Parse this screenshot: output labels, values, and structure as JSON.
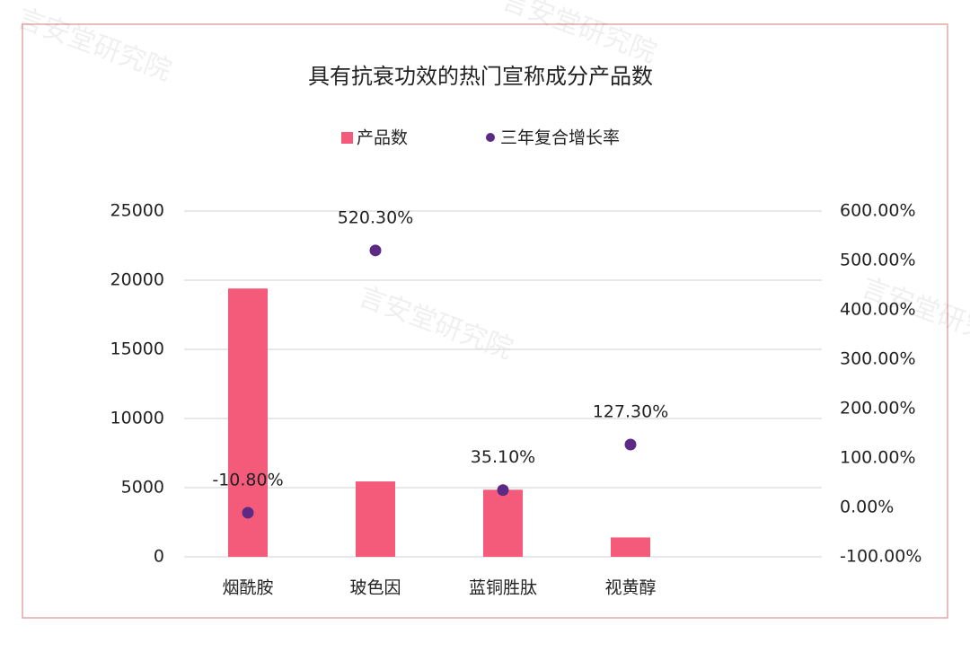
{
  "watermark": "言安堂研究院",
  "chart_data": {
    "type": "bar+scatter",
    "title": "具有抗衰功效的热门宣称成分产品数",
    "categories": [
      "烟酰胺",
      "玻色因",
      "蓝铜胜肽",
      "视黄醇"
    ],
    "series": [
      {
        "name": "产品数",
        "type": "bar",
        "color": "#f45b7b",
        "values": [
          19400,
          5450,
          4850,
          1400
        ]
      },
      {
        "name": "三年复合增长率",
        "type": "scatter",
        "axis": "y2",
        "color": "#5c2a84",
        "values": [
          -10.8,
          520.3,
          35.1,
          127.3
        ],
        "value_labels": [
          "-10.80%",
          "520.30%",
          "35.10%",
          "127.30%"
        ]
      }
    ],
    "ylim": [
      0,
      25000
    ],
    "yticks": [
      0,
      5000,
      10000,
      15000,
      20000,
      25000
    ],
    "y2lim": [
      -100,
      600
    ],
    "y2ticks": [
      {
        "value": -100,
        "label": "-100.00%"
      },
      {
        "value": 0,
        "label": "0.00%"
      },
      {
        "value": 100,
        "label": "100.00%"
      },
      {
        "value": 200,
        "label": "200.00%"
      },
      {
        "value": 300,
        "label": "300.00%"
      },
      {
        "value": 400,
        "label": "400.00%"
      },
      {
        "value": 500,
        "label": "500.00%"
      },
      {
        "value": 600,
        "label": "600.00%"
      }
    ],
    "grid": true
  }
}
